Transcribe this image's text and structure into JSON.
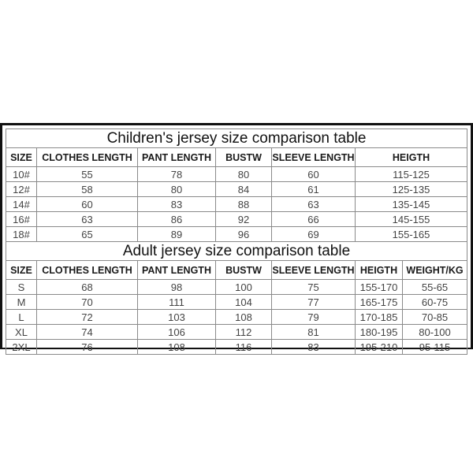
{
  "children": {
    "title": "Children's jersey size comparison table",
    "headers": [
      "SIZE",
      "CLOTHES LENGTH",
      "PANT LENGTH",
      "BUSTW",
      "SLEEVE LENGTH",
      "HEIGTH"
    ],
    "rows": [
      [
        "10#",
        "55",
        "78",
        "80",
        "60",
        "115-125"
      ],
      [
        "12#",
        "58",
        "80",
        "84",
        "61",
        "125-135"
      ],
      [
        "14#",
        "60",
        "83",
        "88",
        "63",
        "135-145"
      ],
      [
        "16#",
        "63",
        "86",
        "92",
        "66",
        "145-155"
      ],
      [
        "18#",
        "65",
        "89",
        "96",
        "69",
        "155-165"
      ]
    ]
  },
  "adult": {
    "title": "Adult jersey size comparison table",
    "headers": [
      "SIZE",
      "CLOTHES LENGTH",
      "PANT LENGTH",
      "BUSTW",
      "SLEEVE LENGTH",
      "HEIGTH",
      "WEIGHT/KG"
    ],
    "rows": [
      [
        "S",
        "68",
        "98",
        "100",
        "75",
        "155-170",
        "55-65"
      ],
      [
        "M",
        "70",
        "111",
        "104",
        "77",
        "165-175",
        "60-75"
      ],
      [
        "L",
        "72",
        "103",
        "108",
        "79",
        "170-185",
        "70-85"
      ],
      [
        "XL",
        "74",
        "106",
        "112",
        "81",
        "180-195",
        "80-100"
      ],
      [
        "2XL",
        "76",
        "108",
        "116",
        "83",
        "195-210",
        "95-115"
      ]
    ]
  }
}
